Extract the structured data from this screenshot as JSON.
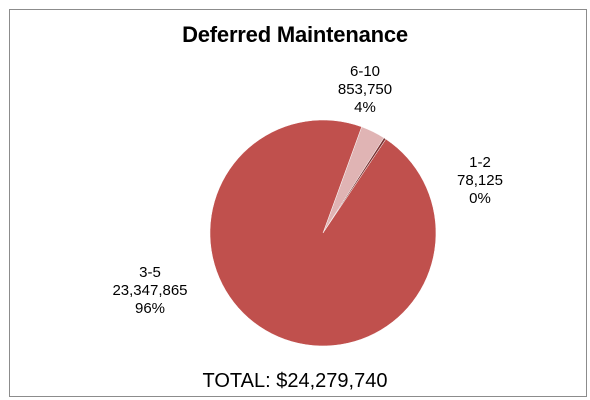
{
  "chart_data": {
    "type": "pie",
    "title": "Deferred Maintenance",
    "slices": [
      {
        "category": "6-10",
        "value": 853750,
        "value_label": "853,750",
        "percent_label": "4%",
        "color": "#e0b4b4"
      },
      {
        "category": "1-2",
        "value": 78125,
        "value_label": "78,125",
        "percent_label": "0%",
        "color": "#7a3030"
      },
      {
        "category": "3-5",
        "value": 23347865,
        "value_label": "23,347,865",
        "percent_label": "96%",
        "color": "#c0504d"
      }
    ],
    "total_label": "TOTAL: $24,279,740"
  }
}
